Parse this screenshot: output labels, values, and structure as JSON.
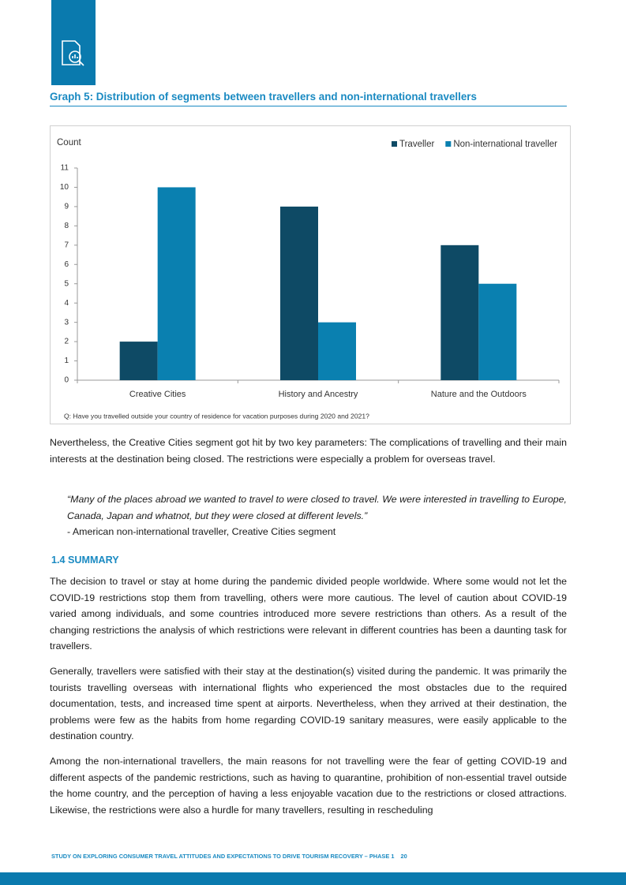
{
  "header": {
    "graph_title": "Graph 5: Distribution of segments between travellers and non-international travellers"
  },
  "chart_data": {
    "type": "bar",
    "y_label": "Count",
    "categories": [
      "Creative Cities",
      "History and Ancestry",
      "Nature and the Outdoors"
    ],
    "series": [
      {
        "name": "Traveller",
        "color": "#0e4a65",
        "values": [
          2,
          9,
          7
        ]
      },
      {
        "name": "Non-international traveller",
        "color": "#0a80b0",
        "values": [
          10,
          3,
          5
        ]
      }
    ],
    "ylim": [
      0,
      11
    ],
    "yticks": [
      0,
      1,
      2,
      3,
      4,
      5,
      6,
      7,
      8,
      9,
      10,
      11
    ],
    "grid": false,
    "legend": "top-right",
    "note": "Q: Have you travelled outside your country of residence for vacation purposes during 2020 and 2021?"
  },
  "paragraphs": [
    "Nevertheless, the Creative Cities segment got hit by two key parameters: The complications of travelling and their main interests at the destination being closed. The restrictions were especially a problem for overseas travel."
  ],
  "quote": {
    "text": "“Many of the places abroad we wanted to travel to were closed to travel. We were interested in travelling to Europe, Canada, Japan and whatnot, but they were closed at different levels.”",
    "attribution": "- American non-international traveller, Creative Cities segment"
  },
  "section_heading": "1.4 SUMMARY",
  "summary_paragraphs": [
    "The decision to travel or stay at home during the pandemic divided people worldwide. Where some would not let the COVID-19 restrictions stop them from travelling, others were more cautious. The level of caution about COVID-19 varied among individuals, and some countries introduced more severe restrictions than others. As a result of the changing restrictions the analysis of which restrictions were relevant in different countries has been a daunting task for travellers.",
    "Generally, travellers were satisfied with their stay at the destination(s) visited during the pandemic. It was primarily the tourists travelling overseas with international flights who experienced the most obstacles due to the required documentation, tests, and increased time spent at airports. Nevertheless, when they arrived at their destination, the problems were few as the habits from home regarding COVID-19 sanitary measures, were easily applicable to the destination country.",
    "Among the non-international travellers, the main reasons for not travelling were the fear of getting COVID-19 and different aspects of the pandemic restrictions, such as having to quarantine, prohibition of non-essential travel outside the home country, and the perception of having a less enjoyable vacation due to the restrictions or closed attractions. Likewise, the restrictions were also a hurdle for many travellers, resulting in rescheduling"
  ],
  "footer": {
    "text": "STUDY ON EXPLORING CONSUMER TRAVEL ATTITUDES AND EXPECTATIONS TO DRIVE TOURISM RECOVERY – PHASE 1",
    "page": "20"
  }
}
